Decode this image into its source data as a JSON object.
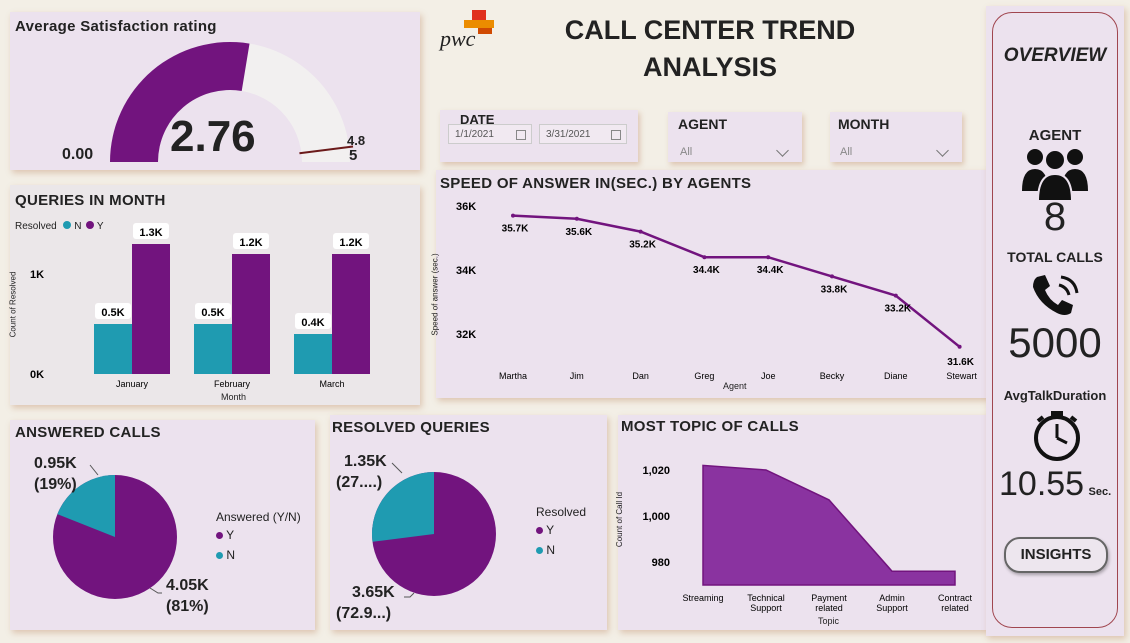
{
  "header": {
    "logo_text": "pwc",
    "title_line1": "CALL CENTER TREND",
    "title_line2": "ANALYSIS"
  },
  "colors": {
    "purple": "#72147e",
    "teal": "#1f9bb1",
    "panel": "#ece2ee",
    "gauge_bg": "#f2f0f0"
  },
  "gauge": {
    "title": "Average Satisfaction rating",
    "value": "2.76",
    "min": "0.00",
    "max": "5",
    "target": "4.8",
    "value_num": 2.76,
    "max_num": 5,
    "target_num": 4.8
  },
  "filters": {
    "date": {
      "label": "DATE",
      "start": "1/1/2021",
      "end": "3/31/2021"
    },
    "agent": {
      "label": "AGENT",
      "value": "All"
    },
    "month": {
      "label": "MONTH",
      "value": "All"
    }
  },
  "queries_chart": {
    "title": "QUERIES IN MONTH",
    "legend_title": "Resolved",
    "legend_n": "N",
    "legend_y": "Y",
    "ylabel": "Count of Resolved",
    "xlabel": "Month",
    "yticks": [
      "0K",
      "1K"
    ]
  },
  "speed_chart": {
    "title": "SPEED OF ANSWER IN(SEC.) BY AGENTS",
    "ylabel": "Speed of answer (sec.)",
    "xlabel": "Agent",
    "yticks": [
      "36K",
      "34K",
      "32K"
    ]
  },
  "answered": {
    "title": "ANSWERED CALLS",
    "legend_title": "Answered (Y/N)",
    "legend_y": "Y",
    "legend_n": "N",
    "n_value": "0.95K",
    "n_pct": "(19%)",
    "y_value": "4.05K",
    "y_pct": "(81%)"
  },
  "resolved": {
    "title": "RESOLVED QUERIES",
    "legend_title": "Resolved",
    "legend_y": "Y",
    "legend_n": "N",
    "n_value": "1.35K",
    "n_pct": "(27....)",
    "y_value": "3.65K",
    "y_pct": "(72.9...)"
  },
  "topic_chart": {
    "title": "MOST TOPIC OF CALLS",
    "ylabel": "Count of Call Id",
    "xlabel": "Topic",
    "yticks": [
      "1,020",
      "1,000",
      "980"
    ]
  },
  "sidebar": {
    "overview": "OVERVIEW",
    "agent_label": "AGENT",
    "agent_value": "8",
    "total_calls_label": "TOTAL CALLS",
    "total_calls_value": "5000",
    "avg_talk_label": "AvgTalkDuration",
    "avg_talk_value": "10.55",
    "avg_talk_unit": "Sec.",
    "insights_button": "INSIGHTS"
  },
  "chart_data": [
    {
      "type": "bar",
      "title": "QUERIES IN MONTH",
      "xlabel": "Month",
      "ylabel": "Count of Resolved",
      "categories": [
        "January",
        "February",
        "March"
      ],
      "series": [
        {
          "name": "N",
          "values": [
            500,
            500,
            400
          ],
          "labels": [
            "0.5K",
            "0.5K",
            "0.4K"
          ]
        },
        {
          "name": "Y",
          "values": [
            1300,
            1200,
            1200
          ],
          "labels": [
            "1.3K",
            "1.2K",
            "1.2K"
          ]
        }
      ],
      "ylim": [
        0,
        1600
      ]
    },
    {
      "type": "line",
      "title": "SPEED OF ANSWER IN(SEC.) BY AGENTS",
      "xlabel": "Agent",
      "ylabel": "Speed of answer (sec.)",
      "categories": [
        "Martha",
        "Jim",
        "Dan",
        "Greg",
        "Joe",
        "Becky",
        "Diane",
        "Stewart"
      ],
      "values": [
        35700,
        35600,
        35200,
        34400,
        34400,
        33800,
        33200,
        31600
      ],
      "labels": [
        "35.7K",
        "35.6K",
        "35.2K",
        "34.4K",
        "34.4K",
        "33.8K",
        "33.2K",
        "31.6K"
      ],
      "ylim": [
        31600,
        36000
      ]
    },
    {
      "type": "pie",
      "title": "ANSWERED CALLS",
      "categories": [
        "Y",
        "N"
      ],
      "values": [
        4050,
        950
      ]
    },
    {
      "type": "pie",
      "title": "RESOLVED QUERIES",
      "categories": [
        "Y",
        "N"
      ],
      "values": [
        3650,
        1350
      ]
    },
    {
      "type": "area",
      "title": "MOST TOPIC OF CALLS",
      "xlabel": "Topic",
      "ylabel": "Count of Call Id",
      "categories": [
        "Streaming",
        "Technical Support",
        "Payment related",
        "Admin Support",
        "Contract related"
      ],
      "values": [
        1022,
        1020,
        1007,
        976,
        976
      ],
      "ylim": [
        970,
        1030
      ]
    }
  ]
}
